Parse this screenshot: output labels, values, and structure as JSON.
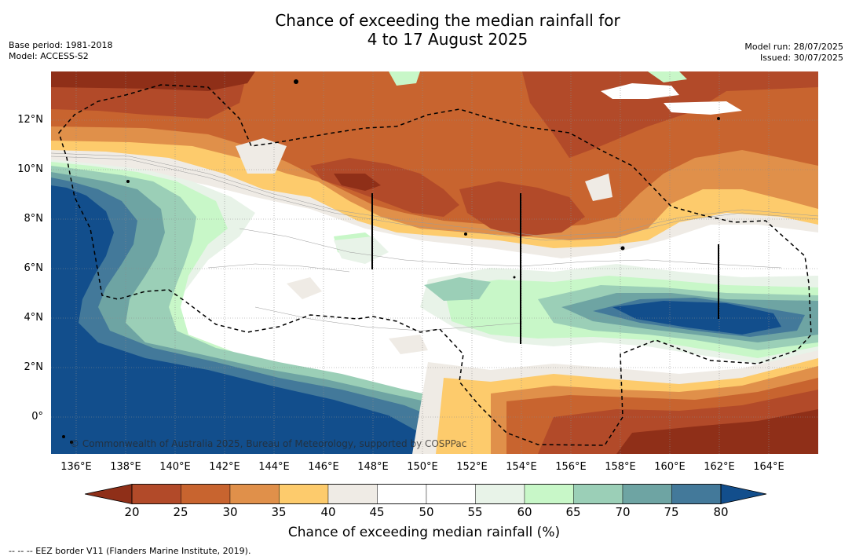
{
  "title": {
    "line1": "Chance of exceeding the median rainfall for",
    "line2": "4 to 17 August 2025"
  },
  "meta_left": {
    "base_period": "Base period: 1981-2018",
    "model": "Model: ACCESS-S2"
  },
  "meta_right": {
    "model_run": "Model run: 28/07/2025",
    "issued": "Issued: 30/07/2025"
  },
  "map": {
    "lat_labels": [
      "12°N",
      "10°N",
      "8°N",
      "6°N",
      "4°N",
      "2°N",
      "0°"
    ],
    "lon_labels": [
      "136°E",
      "138°E",
      "140°E",
      "142°E",
      "144°E",
      "146°E",
      "148°E",
      "150°E",
      "152°E",
      "154°E",
      "156°E",
      "158°E",
      "160°E",
      "162°E",
      "164°E"
    ],
    "copyright": "© Commonwealth of Australia 2025, Bureau of Meteorology, supported by COSPPac"
  },
  "colorbar": {
    "ticks": [
      "20",
      "25",
      "30",
      "35",
      "40",
      "45",
      "50",
      "55",
      "60",
      "65",
      "70",
      "75",
      "80"
    ],
    "colors": [
      "#8f2f18",
      "#b24a29",
      "#c8642f",
      "#e0904a",
      "#fdcb6c",
      "#efebe5",
      "#ffffff",
      "#ffffff",
      "#e8f3e8",
      "#c8f7c8",
      "#9bcfb7",
      "#6ea4a3",
      "#43799a",
      "#124e8c"
    ],
    "title": "Chance of exceeding median rainfall (%)"
  },
  "footnote": "--  --  -- EEZ border V11 (Flanders Marine Institute, 2019)."
}
